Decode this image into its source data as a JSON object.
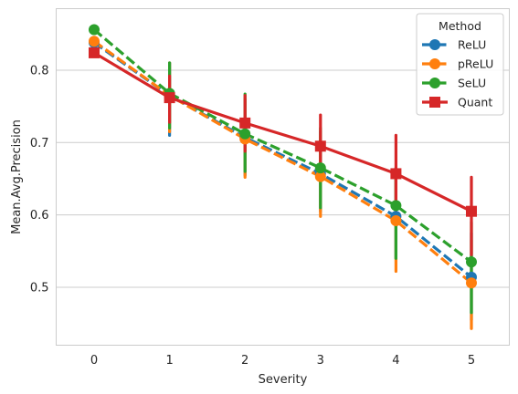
{
  "chart_data": {
    "type": "line",
    "title": "",
    "xlabel": "Severity",
    "ylabel": "Mean.Avg.Precision",
    "categories": [
      "0",
      "1",
      "2",
      "3",
      "4",
      "5"
    ],
    "ylim": [
      0.42,
      0.885
    ],
    "yticks": [
      "0.5",
      "0.6",
      "0.7",
      "0.8"
    ],
    "grid": "horizontal",
    "legend": {
      "title": "Method",
      "position": "top-right"
    },
    "series": [
      {
        "name": "ReLU",
        "color": "#1f77b4",
        "marker": "circle",
        "linestyle": "dashed",
        "values": [
          0.838,
          0.765,
          0.707,
          0.657,
          0.598,
          0.514
        ],
        "ci_low": [
          null,
          0.71,
          0.655,
          0.605,
          0.54,
          0.455
        ],
        "ci_high": [
          null,
          0.81,
          0.76,
          0.715,
          0.655,
          0.575
        ]
      },
      {
        "name": "pReLU",
        "color": "#ff7f0e",
        "marker": "circle",
        "linestyle": "dashed",
        "values": [
          0.84,
          0.765,
          0.705,
          0.653,
          0.592,
          0.506
        ],
        "ci_low": [
          null,
          0.715,
          0.652,
          0.598,
          0.522,
          0.443
        ],
        "ci_high": [
          null,
          0.81,
          0.76,
          0.71,
          0.65,
          0.565
        ]
      },
      {
        "name": "SeLU",
        "color": "#2ca02c",
        "marker": "circle",
        "linestyle": "dashed",
        "values": [
          0.856,
          0.768,
          0.712,
          0.665,
          0.613,
          0.535
        ],
        "ci_low": [
          null,
          0.72,
          0.66,
          0.61,
          0.54,
          0.465
        ],
        "ci_high": [
          null,
          0.81,
          0.767,
          0.72,
          0.665,
          0.59
        ]
      },
      {
        "name": "Quant",
        "color": "#d62728",
        "marker": "square",
        "linestyle": "solid",
        "values": [
          0.824,
          0.762,
          0.727,
          0.695,
          0.657,
          0.605
        ],
        "ci_low": [
          null,
          0.728,
          0.688,
          0.65,
          0.6,
          0.545
        ],
        "ci_high": [
          null,
          0.792,
          0.765,
          0.738,
          0.71,
          0.652
        ]
      }
    ]
  }
}
